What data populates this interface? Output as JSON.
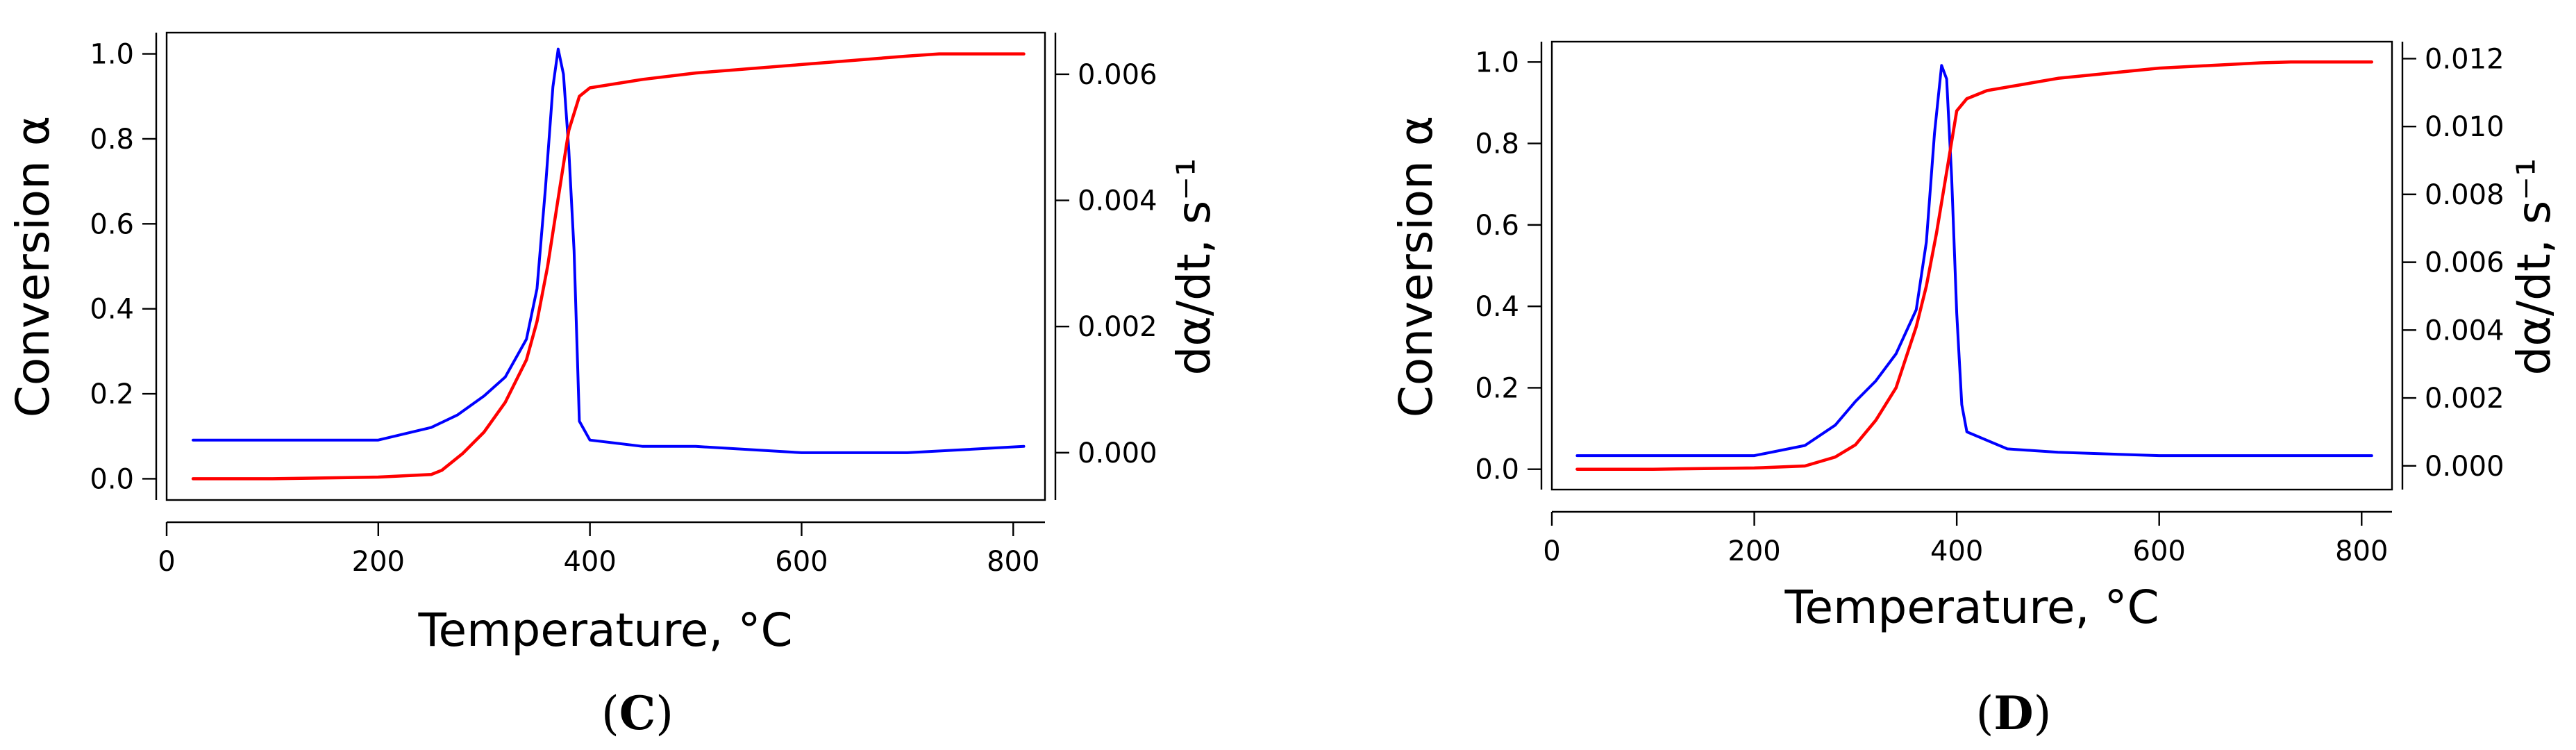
{
  "chart_data": [
    {
      "type": "line",
      "panel_label": {
        "open": "(",
        "letter": "C",
        "close": ")"
      },
      "xlabel": "Temperature, °C",
      "ylabel_left": "Conversion α",
      "ylabel_right": "dα/dt, s⁻¹",
      "xlim": [
        0,
        830
      ],
      "ylim_left": [
        -0.05,
        1.05
      ],
      "ylim_right": [
        -0.00075,
        0.00666
      ],
      "x_ticks": [
        "0",
        "200",
        "400",
        "600",
        "800"
      ],
      "y_left_ticks": [
        "0.0",
        "0.2",
        "0.4",
        "0.6",
        "0.8",
        "1.0"
      ],
      "y_right_ticks": [
        "0.000",
        "0.002",
        "0.004",
        "0.006"
      ],
      "series": [
        {
          "axis": "left",
          "color": "#ff0000",
          "x": [
            25,
            100,
            200,
            250,
            260,
            280,
            300,
            320,
            340,
            350,
            360,
            370,
            380,
            390,
            400,
            450,
            500,
            600,
            700,
            730,
            810
          ],
          "y": [
            0.0,
            0.0,
            0.004,
            0.01,
            0.02,
            0.06,
            0.11,
            0.18,
            0.28,
            0.37,
            0.5,
            0.66,
            0.82,
            0.9,
            0.92,
            0.94,
            0.955,
            0.975,
            0.995,
            1.0,
            1.0
          ]
        },
        {
          "axis": "right",
          "color": "#0000ff",
          "x": [
            25,
            100,
            200,
            250,
            275,
            300,
            320,
            340,
            350,
            358,
            365,
            370,
            375,
            380,
            385,
            390,
            400,
            450,
            500,
            600,
            700,
            810
          ],
          "y": [
            0.0002,
            0.0002,
            0.0002,
            0.0004,
            0.0006,
            0.0009,
            0.0012,
            0.0018,
            0.0026,
            0.0042,
            0.0058,
            0.0064,
            0.006,
            0.0048,
            0.0032,
            0.0005,
            0.0002,
            0.0001,
            0.0001,
            0.0,
            0.0,
            0.0001
          ]
        }
      ]
    },
    {
      "type": "line",
      "panel_label": {
        "open": "(",
        "letter": "D",
        "close": ")"
      },
      "xlabel": "Temperature, °C",
      "ylabel_left": "Conversion α",
      "ylabel_right": "dα/dt, s⁻¹",
      "xlim": [
        0,
        830
      ],
      "ylim_left": [
        -0.05,
        1.05
      ],
      "ylim_right": [
        -0.0007,
        0.0125
      ],
      "x_ticks": [
        "0",
        "200",
        "400",
        "600",
        "800"
      ],
      "y_left_ticks": [
        "0.0",
        "0.2",
        "0.4",
        "0.6",
        "0.8",
        "1.0"
      ],
      "y_right_ticks": [
        "0.000",
        "0.002",
        "0.004",
        "0.006",
        "0.008",
        "0.010",
        "0.012"
      ],
      "series": [
        {
          "axis": "left",
          "color": "#ff0000",
          "x": [
            25,
            100,
            200,
            250,
            280,
            300,
            320,
            340,
            360,
            370,
            380,
            390,
            400,
            410,
            430,
            500,
            600,
            700,
            730,
            810
          ],
          "y": [
            0.0,
            0.0,
            0.003,
            0.008,
            0.03,
            0.06,
            0.12,
            0.2,
            0.35,
            0.45,
            0.58,
            0.73,
            0.88,
            0.91,
            0.93,
            0.96,
            0.985,
            0.998,
            1.0,
            1.0
          ]
        },
        {
          "axis": "right",
          "color": "#0000ff",
          "x": [
            25,
            100,
            200,
            250,
            280,
            300,
            320,
            340,
            360,
            370,
            378,
            385,
            390,
            395,
            400,
            405,
            410,
            450,
            500,
            600,
            700,
            810
          ],
          "y": [
            0.0003,
            0.0003,
            0.0003,
            0.0006,
            0.0012,
            0.0019,
            0.0025,
            0.0033,
            0.0046,
            0.0066,
            0.0098,
            0.0118,
            0.0114,
            0.0085,
            0.0045,
            0.0018,
            0.001,
            0.0005,
            0.0004,
            0.0003,
            0.0003,
            0.0003
          ]
        }
      ]
    }
  ]
}
